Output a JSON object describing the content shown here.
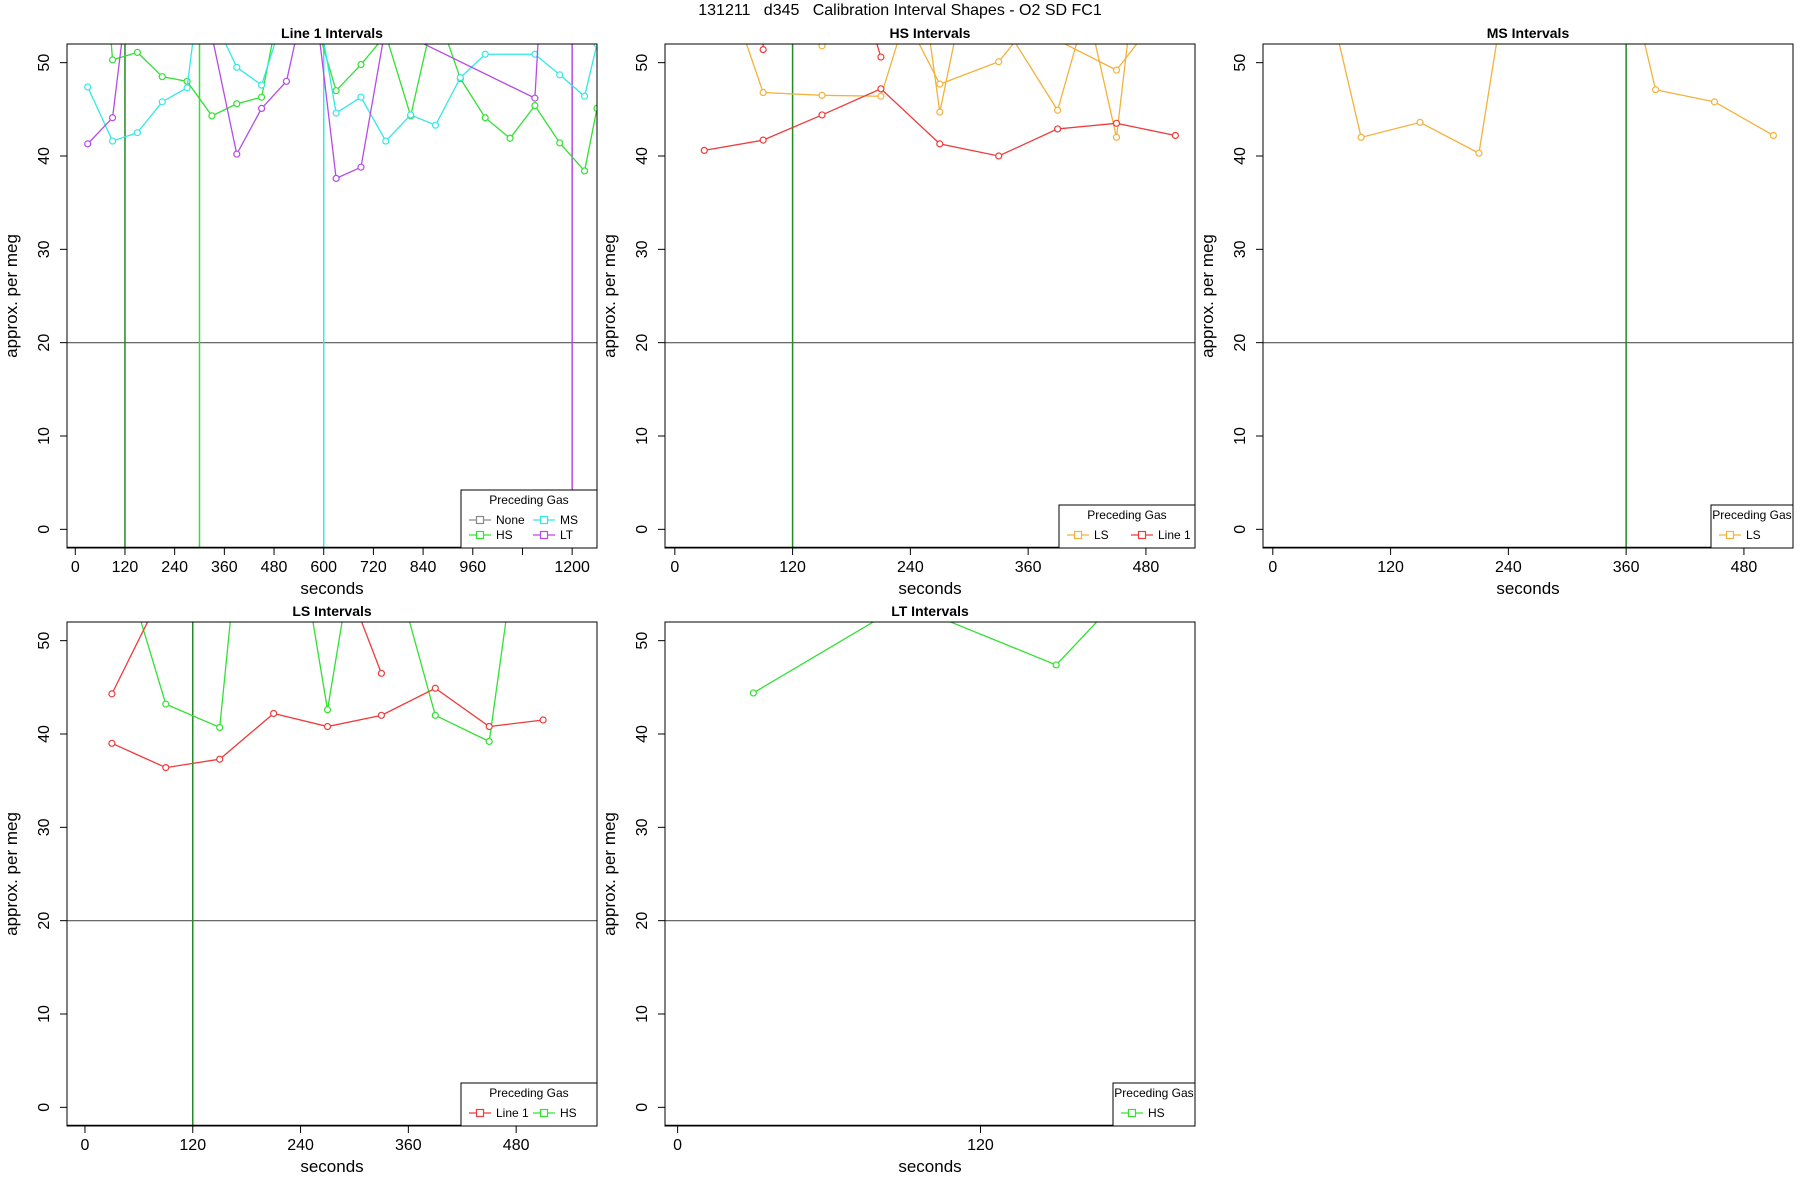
{
  "figure": {
    "title": "131211   d345   Calibration Interval Shapes - O2 SD FC1"
  },
  "colors": {
    "None": "#888888",
    "HS": "#33e033",
    "MS": "#33e8e8",
    "LT": "#b64be6",
    "LS": "#f4b13c",
    "Line 1": "#ee3b3b",
    "reference": "#555555",
    "marker": "#228b22"
  },
  "chart_data": [
    {
      "type": "line",
      "title": "Line 1 Intervals",
      "xlabel": "seconds",
      "ylabel": "approx. per meg",
      "xlim": [
        -20,
        1260
      ],
      "ylim": [
        -2,
        52
      ],
      "xticks": [
        0,
        120,
        240,
        360,
        480,
        600,
        720,
        840,
        960,
        1080,
        1200
      ],
      "xtick_labels": [
        "0",
        "120",
        "240",
        "360",
        "480",
        "600",
        "720",
        "840",
        "960",
        "",
        "1200"
      ],
      "yticks": [
        0,
        10,
        20,
        30,
        40,
        50
      ],
      "hline": 20,
      "vlines": [
        {
          "x": 120,
          "color": "#228b22"
        },
        {
          "x": 300,
          "color": "#33e033"
        },
        {
          "x": 600,
          "color": "#33e8e8"
        },
        {
          "x": 1200,
          "color": "#b64be6"
        }
      ],
      "legend": {
        "title": "Preceding Gas",
        "position": "bottom-right",
        "columns": 2,
        "entries": [
          "None",
          "MS",
          "HS",
          "LT"
        ]
      },
      "series": [
        {
          "name": "HS",
          "points": [
            [
              80,
              56
            ],
            [
              90,
              50.3
            ],
            [
              150,
              51.1
            ],
            [
              210,
              48.5
            ],
            [
              270,
              48.0
            ],
            [
              330,
              44.3
            ],
            [
              390,
              45.6
            ],
            [
              450,
              46.3
            ],
            [
              510,
              60
            ],
            [
              570,
              56
            ],
            [
              630,
              47.0
            ],
            [
              690,
              49.8
            ],
            [
              750,
              53
            ],
            [
              810,
              44.3
            ],
            [
              870,
              56
            ],
            [
              930,
              48.3
            ],
            [
              990,
              44.1
            ],
            [
              1050,
              41.9
            ],
            [
              1110,
              45.4
            ],
            [
              1170,
              41.4
            ],
            [
              1230,
              38.4
            ],
            [
              1260,
              45.1
            ]
          ]
        },
        {
          "name": "MS",
          "points": [
            [
              30,
              47.4
            ],
            [
              90,
              41.6
            ],
            [
              150,
              42.5
            ],
            [
              210,
              45.8
            ],
            [
              270,
              47.3
            ],
            [
              300,
              58
            ],
            [
              390,
              49.5
            ],
            [
              450,
              47.6
            ],
            [
              510,
              56
            ],
            [
              570,
              60
            ],
            [
              630,
              44.6
            ],
            [
              690,
              46.3
            ],
            [
              750,
              41.6
            ],
            [
              810,
              44.4
            ],
            [
              870,
              43.3
            ],
            [
              930,
              48.4
            ],
            [
              990,
              50.9
            ],
            [
              1110,
              50.9
            ],
            [
              1170,
              48.7
            ],
            [
              1230,
              46.4
            ],
            [
              1260,
              52
            ]
          ]
        },
        {
          "name": "LT",
          "points": [
            [
              30,
              41.3
            ],
            [
              90,
              44.1
            ],
            [
              120,
              55
            ],
            [
              180,
              60
            ],
            [
              320,
              55
            ],
            [
              390,
              40.2
            ],
            [
              450,
              45.1
            ],
            [
              510,
              48.0
            ],
            [
              570,
              60
            ],
            [
              630,
              37.6
            ],
            [
              690,
              38.8
            ],
            [
              750,
              54
            ],
            [
              1110,
              46.2
            ],
            [
              1120,
              54
            ],
            [
              1230,
              60
            ]
          ]
        }
      ]
    },
    {
      "type": "line",
      "title": "HS Intervals",
      "xlabel": "seconds",
      "ylabel": "approx. per meg",
      "xlim": [
        -10,
        530
      ],
      "ylim": [
        -2,
        52
      ],
      "xticks": [
        0,
        120,
        240,
        360,
        480
      ],
      "xtick_labels": [
        "0",
        "120",
        "240",
        "360",
        "480"
      ],
      "yticks": [
        0,
        10,
        20,
        30,
        40,
        50
      ],
      "hline": 20,
      "vlines": [
        {
          "x": 120,
          "color": "#228b22"
        }
      ],
      "legend": {
        "title": "Preceding Gas",
        "position": "bottom-right",
        "columns": 2,
        "entries": [
          "LS",
          "Line 1"
        ]
      },
      "series": [
        {
          "name": "LS",
          "points": [
            [
              60,
              56
            ],
            [
              90,
              46.8
            ],
            [
              150,
              46.5
            ],
            [
              210,
              46.4
            ],
            [
              250,
              60
            ],
            [
              270,
              44.7
            ],
            [
              300,
              60
            ],
            [
              390,
              44.9
            ],
            [
              420,
              56
            ],
            [
              450,
              42.0
            ],
            [
              470,
              60
            ]
          ]
        },
        {
          "name": "LS",
          "points": [
            [
              60,
              60
            ],
            [
              150,
              51.8
            ],
            [
              210,
              60
            ],
            [
              270,
              47.7
            ],
            [
              330,
              50.1
            ],
            [
              360,
              54
            ],
            [
              450,
              49.2
            ],
            [
              500,
              56
            ]
          ]
        },
        {
          "name": "Line 1",
          "points": [
            [
              30,
              40.6
            ],
            [
              90,
              41.7
            ],
            [
              150,
              44.4
            ],
            [
              210,
              47.2
            ],
            [
              270,
              41.3
            ],
            [
              330,
              40.0
            ],
            [
              390,
              42.9
            ],
            [
              450,
              43.5
            ],
            [
              510,
              42.2
            ]
          ]
        },
        {
          "name": "Line 1",
          "points": [
            [
              90,
              51.4
            ],
            [
              90,
              60
            ]
          ]
        },
        {
          "name": "Line 1",
          "points": [
            [
              200,
              54
            ],
            [
              210,
              50.6
            ]
          ]
        }
      ]
    },
    {
      "type": "line",
      "title": "MS Intervals",
      "xlabel": "seconds",
      "ylabel": "approx. per meg",
      "xlim": [
        -10,
        530
      ],
      "ylim": [
        -2,
        52
      ],
      "xticks": [
        0,
        120,
        240,
        360,
        480
      ],
      "xtick_labels": [
        "0",
        "120",
        "240",
        "360",
        "480"
      ],
      "yticks": [
        0,
        10,
        20,
        30,
        40,
        50
      ],
      "hline": 20,
      "vlines": [
        {
          "x": 360,
          "color": "#228b22"
        }
      ],
      "legend": {
        "title": "Preceding Gas",
        "position": "bottom-right",
        "columns": 1,
        "entries": [
          "LS"
        ]
      },
      "series": [
        {
          "name": "LS",
          "points": [
            [
              50,
              60
            ],
            [
              90,
              42.0
            ],
            [
              150,
              43.6
            ],
            [
              210,
              40.3
            ],
            [
              240,
              60
            ]
          ]
        },
        {
          "name": "LS",
          "points": [
            [
              370,
              56
            ],
            [
              390,
              47.1
            ],
            [
              450,
              45.8
            ],
            [
              510,
              42.2
            ]
          ]
        }
      ]
    },
    {
      "type": "line",
      "title": "LS Intervals",
      "xlabel": "seconds",
      "ylabel": "approx. per meg",
      "xlim": [
        -20,
        570
      ],
      "ylim": [
        -2,
        52
      ],
      "xticks": [
        0,
        120,
        240,
        360,
        480
      ],
      "xtick_labels": [
        "0",
        "120",
        "240",
        "360",
        "480"
      ],
      "yticks": [
        0,
        10,
        20,
        30,
        40,
        50
      ],
      "hline": 20,
      "vlines": [
        {
          "x": 120,
          "color": "#228b22"
        }
      ],
      "legend": {
        "title": "Preceding Gas",
        "position": "bottom-right",
        "columns": 2,
        "entries": [
          "Line 1",
          "HS"
        ]
      },
      "series": [
        {
          "name": "HS",
          "points": [
            [
              50,
              56
            ],
            [
              90,
              43.2
            ],
            [
              150,
              40.7
            ],
            [
              170,
              60
            ],
            [
              240,
              60
            ],
            [
              270,
              42.6
            ],
            [
              300,
              60
            ],
            [
              350,
              56
            ],
            [
              390,
              42.0
            ],
            [
              450,
              39.2
            ],
            [
              480,
              60
            ]
          ]
        },
        {
          "name": "Line 1",
          "points": [
            [
              30,
              39.0
            ],
            [
              90,
              36.4
            ],
            [
              150,
              37.3
            ],
            [
              210,
              42.2
            ],
            [
              270,
              40.8
            ],
            [
              330,
              42.0
            ],
            [
              390,
              44.9
            ],
            [
              450,
              40.8
            ],
            [
              510,
              41.5
            ]
          ]
        },
        {
          "name": "Line 1",
          "points": [
            [
              30,
              44.3
            ],
            [
              80,
              54
            ]
          ]
        },
        {
          "name": "Line 1",
          "points": [
            [
              300,
              54
            ],
            [
              330,
              46.5
            ]
          ]
        }
      ]
    },
    {
      "type": "line",
      "title": "LT Intervals",
      "xlabel": "seconds",
      "ylabel": "approx. per meg",
      "xlim": [
        -5,
        205
      ],
      "ylim": [
        -2,
        52
      ],
      "xticks": [
        0,
        120
      ],
      "xtick_labels": [
        "0",
        "120"
      ],
      "yticks": [
        0,
        10,
        20,
        30,
        40,
        50
      ],
      "hline": 20,
      "vlines": [],
      "legend": {
        "title": "Preceding Gas",
        "position": "bottom-right",
        "columns": 1,
        "entries": [
          "HS"
        ]
      },
      "series": [
        {
          "name": "HS",
          "points": [
            [
              30,
              44.4
            ],
            [
              90,
              54
            ],
            [
              150,
              47.4
            ],
            [
              180,
              56
            ]
          ]
        }
      ]
    }
  ]
}
